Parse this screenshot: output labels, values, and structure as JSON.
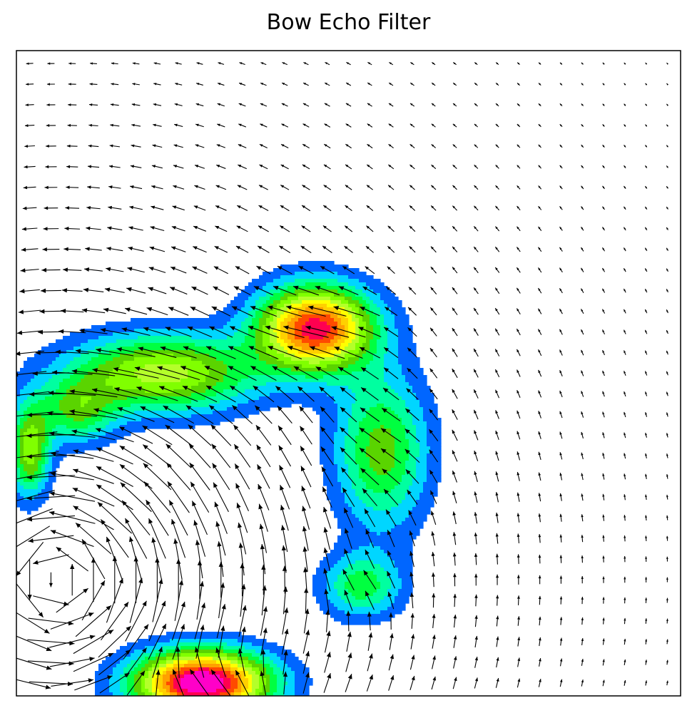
{
  "chart_data": {
    "type": "contour-quiver",
    "title": "Bow Echo Filter",
    "xlabel": "",
    "ylabel": "",
    "xticks": [],
    "yticks": [],
    "grid": false,
    "legend": "none",
    "colormap": "gist_rainbow",
    "contour_levels": [
      {
        "level": 1,
        "color": "#0066ff"
      },
      {
        "level": 2,
        "color": "#00d6ff"
      },
      {
        "level": 3,
        "color": "#00ffa0"
      },
      {
        "level": 4,
        "color": "#00ff40"
      },
      {
        "level": 5,
        "color": "#5ad400"
      },
      {
        "level": 6,
        "color": "#80ff00"
      },
      {
        "level": 7,
        "color": "#b4ff2a"
      },
      {
        "level": 8,
        "color": "#ffff00"
      },
      {
        "level": 9,
        "color": "#ffd000"
      },
      {
        "level": 10,
        "color": "#ffa000"
      },
      {
        "level": 11,
        "color": "#ff4a00"
      },
      {
        "level": 12,
        "color": "#ff0050"
      },
      {
        "level": 13,
        "color": "#ff00c8"
      }
    ],
    "field_sources": [
      {
        "x": 0.45,
        "y": 0.57,
        "amp": 12.5,
        "sx": 0.085,
        "sy": 0.065
      },
      {
        "x": 0.22,
        "y": 0.5,
        "amp": 7.5,
        "sx": 0.14,
        "sy": 0.06
      },
      {
        "x": 0.09,
        "y": 0.44,
        "amp": 4.5,
        "sx": 0.06,
        "sy": 0.05
      },
      {
        "x": 0.55,
        "y": 0.38,
        "amp": 5.5,
        "sx": 0.07,
        "sy": 0.12
      },
      {
        "x": 0.28,
        "y": 0.02,
        "amp": 14.5,
        "sx": 0.1,
        "sy": 0.05
      },
      {
        "x": 0.52,
        "y": 0.17,
        "amp": 4.5,
        "sx": 0.06,
        "sy": 0.05
      },
      {
        "x": 0.02,
        "y": 0.38,
        "amp": 6.5,
        "sx": 0.03,
        "sy": 0.07
      }
    ],
    "wind_vortex": {
      "x": 0.06,
      "y": 0.18,
      "strength": 1.0
    }
  }
}
